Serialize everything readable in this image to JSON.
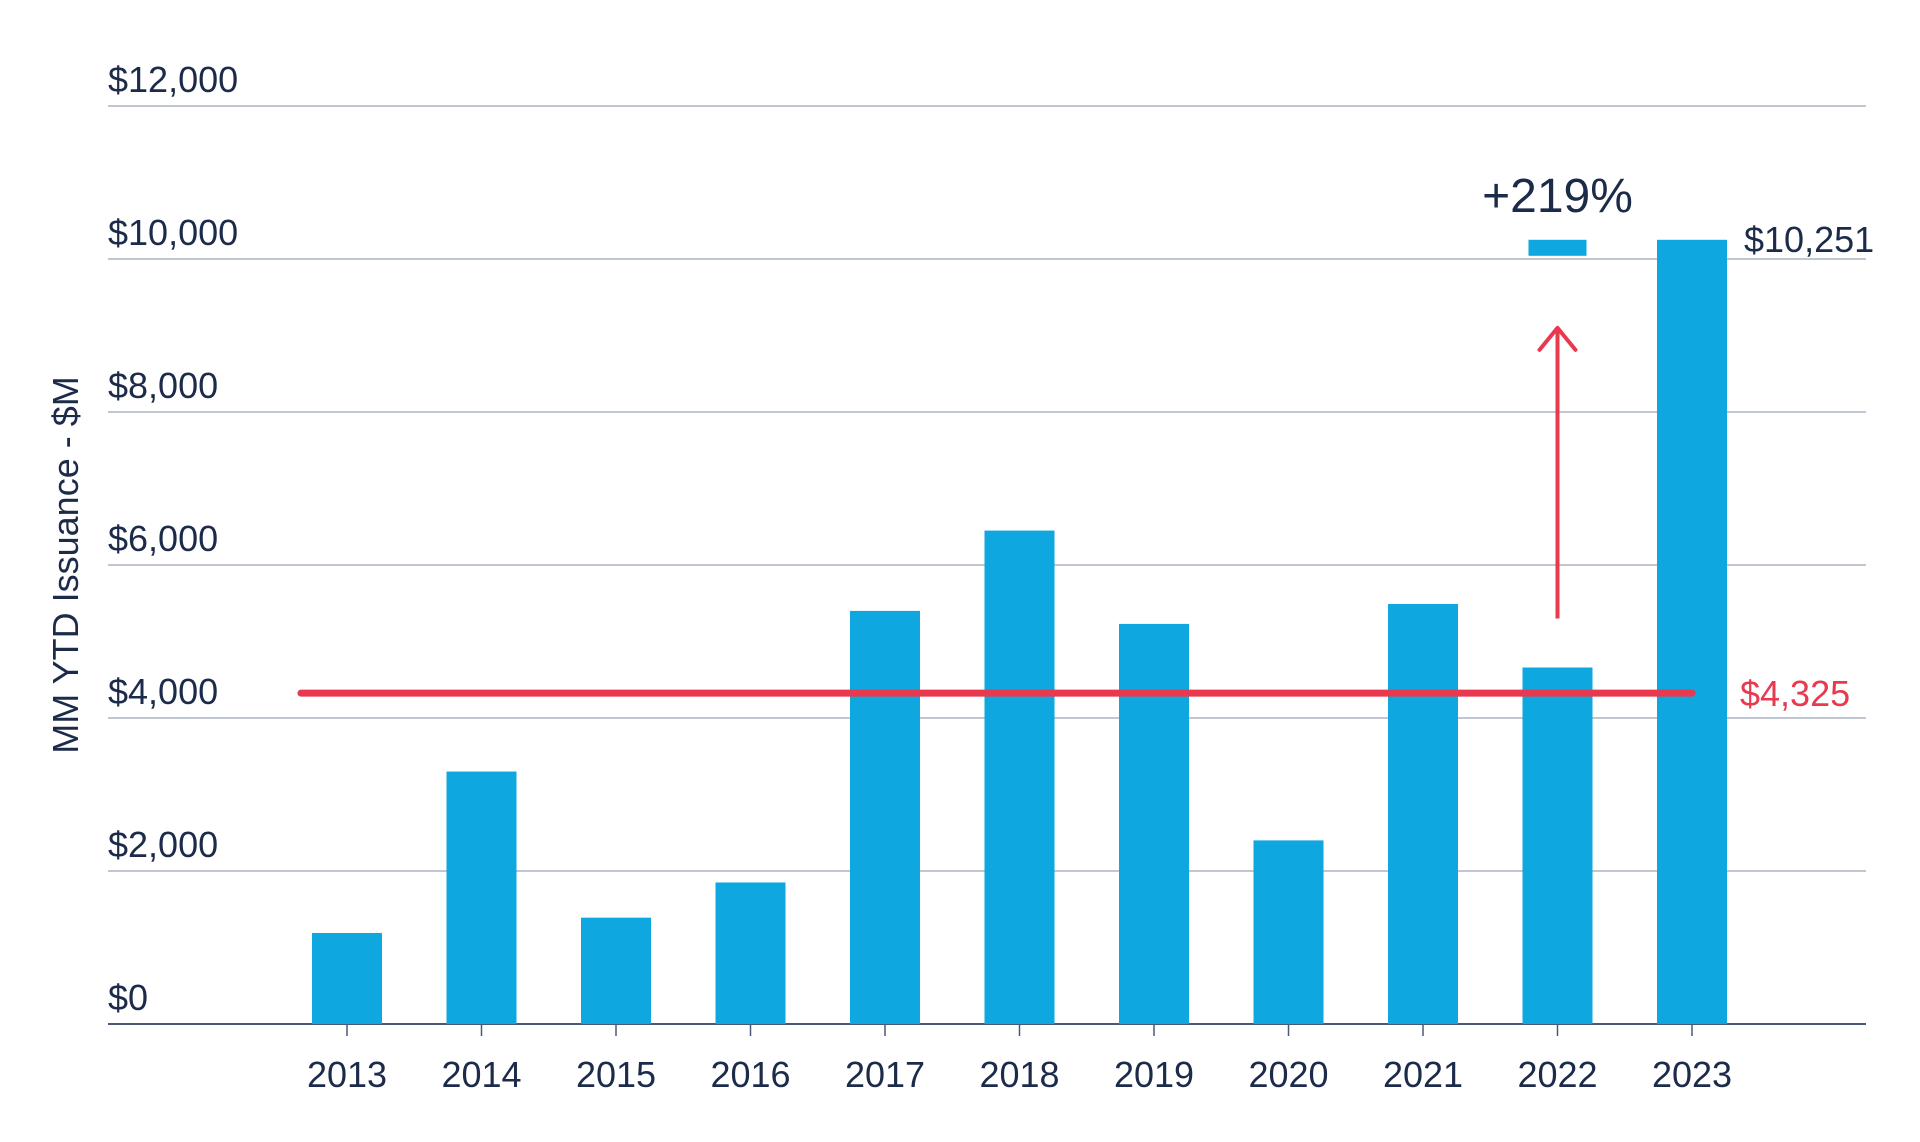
{
  "chart_data": {
    "type": "bar",
    "title": "",
    "xlabel": "",
    "ylabel": "MM YTD Issuance - $M",
    "categories": [
      "2013",
      "2014",
      "2015",
      "2016",
      "2017",
      "2018",
      "2019",
      "2020",
      "2021",
      "2022",
      "2023"
    ],
    "values": [
      1190,
      3300,
      1390,
      1850,
      5400,
      6450,
      5230,
      2400,
      5490,
      4660,
      10251
    ],
    "ylim": [
      0,
      12000
    ],
    "yticks": [
      0,
      2000,
      4000,
      6000,
      8000,
      10000,
      12000
    ],
    "ytick_labels": [
      "$0",
      "$2,000",
      "$4,000",
      "$6,000",
      "$8,000",
      "$10,000",
      "$12,000"
    ],
    "grid": true,
    "bar_color": "#0ea7e0",
    "reference_line": {
      "value": 4325,
      "label": "$4,325",
      "color": "#e8394f"
    },
    "end_value_label": "$10,251",
    "annotation": {
      "text": "+219%",
      "category": "2022",
      "from_value": 5300,
      "to_value": 9100,
      "color": "#e8394f"
    }
  }
}
